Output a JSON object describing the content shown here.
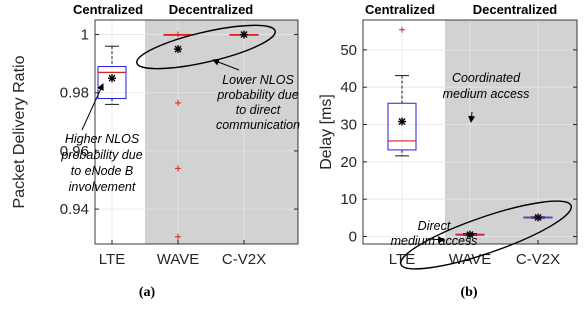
{
  "chart_data": [
    {
      "type": "box",
      "panel_label": "(a)",
      "ylabel": "Packet Delivery Ratio",
      "ylim": [
        0.928,
        1.005
      ],
      "yticks": [
        0.94,
        0.96,
        0.98,
        1
      ],
      "ytick_labels": [
        "0.94",
        "0.96",
        "0.98",
        "1"
      ],
      "grid": true,
      "categories": [
        "LTE",
        "WAVE",
        "C-V2X"
      ],
      "regions": [
        {
          "label": "Centralized",
          "categories": [
            "LTE"
          ],
          "shaded": false
        },
        {
          "label": "Decentralized",
          "categories": [
            "WAVE",
            "C-V2X"
          ],
          "shaded": true
        }
      ],
      "boxes": [
        {
          "category": "LTE",
          "q1": 0.978,
          "median": 0.987,
          "q3": 0.989,
          "whisker_low": 0.976,
          "whisker_high": 0.996,
          "mean": 0.985,
          "outliers": []
        },
        {
          "category": "WAVE",
          "q1": 1.0,
          "median": 1.0,
          "q3": 1.0,
          "whisker_low": 1.0,
          "whisker_high": 1.0,
          "mean": 0.995,
          "outliers": [
            1.0,
            0.9765,
            0.954,
            0.9305
          ]
        },
        {
          "category": "C-V2X",
          "q1": 1.0,
          "median": 1.0,
          "q3": 1.0,
          "whisker_low": 1.0,
          "whisker_high": 1.0,
          "mean": 1.0,
          "outliers": []
        }
      ],
      "annotations": [
        {
          "lines": [
            "Higher NLOS",
            "probability due",
            "to eNode B",
            "involvement"
          ]
        },
        {
          "lines": [
            "Lower NLOS",
            "probability due",
            "to direct",
            "communication"
          ]
        }
      ]
    },
    {
      "type": "box",
      "panel_label": "(b)",
      "ylabel": "Delay [ms]",
      "ylim": [
        -2,
        58
      ],
      "yticks": [
        0,
        10,
        20,
        30,
        40,
        50
      ],
      "ytick_labels": [
        "0",
        "10",
        "20",
        "30",
        "40",
        "50"
      ],
      "grid": true,
      "categories": [
        "LTE",
        "WAVE",
        "C-V2X"
      ],
      "regions": [
        {
          "label": "Centralized",
          "categories": [
            "LTE"
          ],
          "shaded": false
        },
        {
          "label": "Decentralized",
          "categories": [
            "WAVE",
            "C-V2X"
          ],
          "shaded": true
        }
      ],
      "boxes": [
        {
          "category": "LTE",
          "q1": 23.2,
          "median": 25.6,
          "q3": 35.7,
          "whisker_low": 21.6,
          "whisker_high": 43.1,
          "mean": 30.8,
          "outliers": [
            55.4
          ]
        },
        {
          "category": "WAVE",
          "q1": 0.4,
          "median": 0.5,
          "q3": 0.6,
          "whisker_low": 0.3,
          "whisker_high": 0.8,
          "mean": 0.5,
          "outliers": []
        },
        {
          "category": "C-V2X",
          "q1": 5.0,
          "median": 5.1,
          "q3": 5.2,
          "whisker_low": 4.9,
          "whisker_high": 5.3,
          "mean": 5.1,
          "outliers": []
        }
      ],
      "annotations": [
        {
          "lines": [
            "Coordinated",
            "medium access"
          ]
        },
        {
          "lines": [
            "Direct",
            "medium access"
          ]
        }
      ]
    }
  ],
  "style": {
    "box_color": "#1f1fe0",
    "median_color": "#e01f1f",
    "outlier_color": "#e01f1f",
    "mean_color": "#000000",
    "whisker_color": "#000000",
    "shade_color": "#d2d2d2",
    "grid_color": "#e6e6e6"
  }
}
